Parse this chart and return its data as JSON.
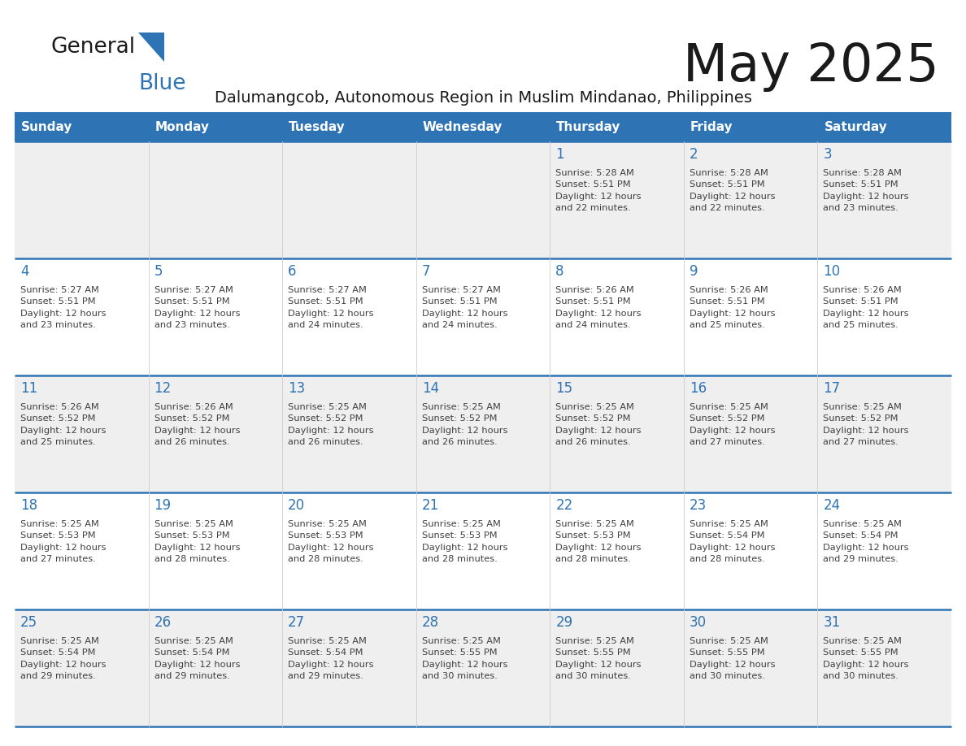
{
  "title": "May 2025",
  "subtitle": "Dalumangcob, Autonomous Region in Muslim Mindanao, Philippines",
  "days_of_week": [
    "Sunday",
    "Monday",
    "Tuesday",
    "Wednesday",
    "Thursday",
    "Friday",
    "Saturday"
  ],
  "header_bg": "#2E74B5",
  "header_text": "#FFFFFF",
  "row_odd_bg": "#EFEFEF",
  "row_even_bg": "#FFFFFF",
  "separator_color": "#2E74B5",
  "day_num_color": "#2E74B5",
  "cell_text_color": "#404040",
  "title_color": "#1a1a1a",
  "subtitle_color": "#1a1a1a",
  "logo_general_color": "#1a1a1a",
  "logo_blue_color": "#2E74B5",
  "logo_triangle_color": "#2E74B5",
  "calendar_data": [
    [
      {
        "day": null,
        "info": null
      },
      {
        "day": null,
        "info": null
      },
      {
        "day": null,
        "info": null
      },
      {
        "day": null,
        "info": null
      },
      {
        "day": 1,
        "info": "Sunrise: 5:28 AM\nSunset: 5:51 PM\nDaylight: 12 hours\nand 22 minutes."
      },
      {
        "day": 2,
        "info": "Sunrise: 5:28 AM\nSunset: 5:51 PM\nDaylight: 12 hours\nand 22 minutes."
      },
      {
        "day": 3,
        "info": "Sunrise: 5:28 AM\nSunset: 5:51 PM\nDaylight: 12 hours\nand 23 minutes."
      }
    ],
    [
      {
        "day": 4,
        "info": "Sunrise: 5:27 AM\nSunset: 5:51 PM\nDaylight: 12 hours\nand 23 minutes."
      },
      {
        "day": 5,
        "info": "Sunrise: 5:27 AM\nSunset: 5:51 PM\nDaylight: 12 hours\nand 23 minutes."
      },
      {
        "day": 6,
        "info": "Sunrise: 5:27 AM\nSunset: 5:51 PM\nDaylight: 12 hours\nand 24 minutes."
      },
      {
        "day": 7,
        "info": "Sunrise: 5:27 AM\nSunset: 5:51 PM\nDaylight: 12 hours\nand 24 minutes."
      },
      {
        "day": 8,
        "info": "Sunrise: 5:26 AM\nSunset: 5:51 PM\nDaylight: 12 hours\nand 24 minutes."
      },
      {
        "day": 9,
        "info": "Sunrise: 5:26 AM\nSunset: 5:51 PM\nDaylight: 12 hours\nand 25 minutes."
      },
      {
        "day": 10,
        "info": "Sunrise: 5:26 AM\nSunset: 5:51 PM\nDaylight: 12 hours\nand 25 minutes."
      }
    ],
    [
      {
        "day": 11,
        "info": "Sunrise: 5:26 AM\nSunset: 5:52 PM\nDaylight: 12 hours\nand 25 minutes."
      },
      {
        "day": 12,
        "info": "Sunrise: 5:26 AM\nSunset: 5:52 PM\nDaylight: 12 hours\nand 26 minutes."
      },
      {
        "day": 13,
        "info": "Sunrise: 5:25 AM\nSunset: 5:52 PM\nDaylight: 12 hours\nand 26 minutes."
      },
      {
        "day": 14,
        "info": "Sunrise: 5:25 AM\nSunset: 5:52 PM\nDaylight: 12 hours\nand 26 minutes."
      },
      {
        "day": 15,
        "info": "Sunrise: 5:25 AM\nSunset: 5:52 PM\nDaylight: 12 hours\nand 26 minutes."
      },
      {
        "day": 16,
        "info": "Sunrise: 5:25 AM\nSunset: 5:52 PM\nDaylight: 12 hours\nand 27 minutes."
      },
      {
        "day": 17,
        "info": "Sunrise: 5:25 AM\nSunset: 5:52 PM\nDaylight: 12 hours\nand 27 minutes."
      }
    ],
    [
      {
        "day": 18,
        "info": "Sunrise: 5:25 AM\nSunset: 5:53 PM\nDaylight: 12 hours\nand 27 minutes."
      },
      {
        "day": 19,
        "info": "Sunrise: 5:25 AM\nSunset: 5:53 PM\nDaylight: 12 hours\nand 28 minutes."
      },
      {
        "day": 20,
        "info": "Sunrise: 5:25 AM\nSunset: 5:53 PM\nDaylight: 12 hours\nand 28 minutes."
      },
      {
        "day": 21,
        "info": "Sunrise: 5:25 AM\nSunset: 5:53 PM\nDaylight: 12 hours\nand 28 minutes."
      },
      {
        "day": 22,
        "info": "Sunrise: 5:25 AM\nSunset: 5:53 PM\nDaylight: 12 hours\nand 28 minutes."
      },
      {
        "day": 23,
        "info": "Sunrise: 5:25 AM\nSunset: 5:54 PM\nDaylight: 12 hours\nand 28 minutes."
      },
      {
        "day": 24,
        "info": "Sunrise: 5:25 AM\nSunset: 5:54 PM\nDaylight: 12 hours\nand 29 minutes."
      }
    ],
    [
      {
        "day": 25,
        "info": "Sunrise: 5:25 AM\nSunset: 5:54 PM\nDaylight: 12 hours\nand 29 minutes."
      },
      {
        "day": 26,
        "info": "Sunrise: 5:25 AM\nSunset: 5:54 PM\nDaylight: 12 hours\nand 29 minutes."
      },
      {
        "day": 27,
        "info": "Sunrise: 5:25 AM\nSunset: 5:54 PM\nDaylight: 12 hours\nand 29 minutes."
      },
      {
        "day": 28,
        "info": "Sunrise: 5:25 AM\nSunset: 5:55 PM\nDaylight: 12 hours\nand 30 minutes."
      },
      {
        "day": 29,
        "info": "Sunrise: 5:25 AM\nSunset: 5:55 PM\nDaylight: 12 hours\nand 30 minutes."
      },
      {
        "day": 30,
        "info": "Sunrise: 5:25 AM\nSunset: 5:55 PM\nDaylight: 12 hours\nand 30 minutes."
      },
      {
        "day": 31,
        "info": "Sunrise: 5:25 AM\nSunset: 5:55 PM\nDaylight: 12 hours\nand 30 minutes."
      }
    ]
  ]
}
